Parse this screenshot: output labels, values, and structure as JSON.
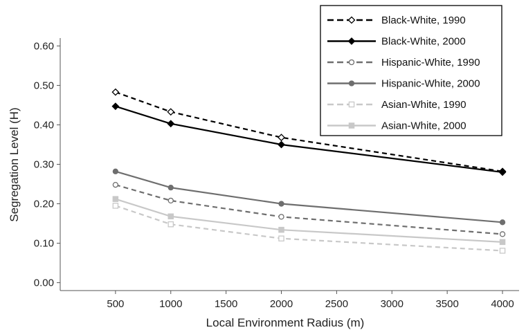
{
  "chart_data": {
    "type": "line",
    "title": "",
    "xlabel": "Local Environment Radius (m)",
    "ylabel": "Segregation Level (H)",
    "xlim": [
      0,
      4150
    ],
    "ylim": [
      -0.02,
      0.62
    ],
    "x": [
      500,
      1000,
      2000,
      4000
    ],
    "x_ticks": [
      500,
      1000,
      1500,
      2000,
      2500,
      3000,
      3500,
      4000
    ],
    "x_tick_labels": [
      "500",
      "1000",
      "1500",
      "2000",
      "2500",
      "3000",
      "3500",
      "4000"
    ],
    "y_ticks": [
      0.0,
      0.1,
      0.2,
      0.3,
      0.4,
      0.5,
      0.6
    ],
    "y_tick_labels": [
      "0.00",
      "0.10",
      "0.20",
      "0.30",
      "0.40",
      "0.50",
      "0.60"
    ],
    "grid": false,
    "legend_position": "top-right",
    "series": [
      {
        "name": "Black-White, 1990",
        "values": [
          0.483,
          0.433,
          0.368,
          0.282
        ],
        "color": "#000000",
        "dash": "dashed",
        "marker": "diamond-open"
      },
      {
        "name": "Black-White, 2000",
        "values": [
          0.447,
          0.403,
          0.35,
          0.28
        ],
        "color": "#000000",
        "dash": "solid",
        "marker": "diamond-filled"
      },
      {
        "name": "Hispanic-White, 1990",
        "values": [
          0.248,
          0.208,
          0.167,
          0.123
        ],
        "color": "#6e6e6e",
        "dash": "dashed",
        "marker": "circle-open"
      },
      {
        "name": "Hispanic-White, 2000",
        "values": [
          0.282,
          0.241,
          0.2,
          0.153
        ],
        "color": "#6e6e6e",
        "dash": "solid",
        "marker": "circle-filled"
      },
      {
        "name": "Asian-White, 1990",
        "values": [
          0.195,
          0.148,
          0.112,
          0.081
        ],
        "color": "#c8c8c8",
        "dash": "dashed",
        "marker": "square-open"
      },
      {
        "name": "Asian-White, 2000",
        "values": [
          0.212,
          0.168,
          0.134,
          0.103
        ],
        "color": "#c8c8c8",
        "dash": "solid",
        "marker": "square-filled"
      }
    ]
  }
}
